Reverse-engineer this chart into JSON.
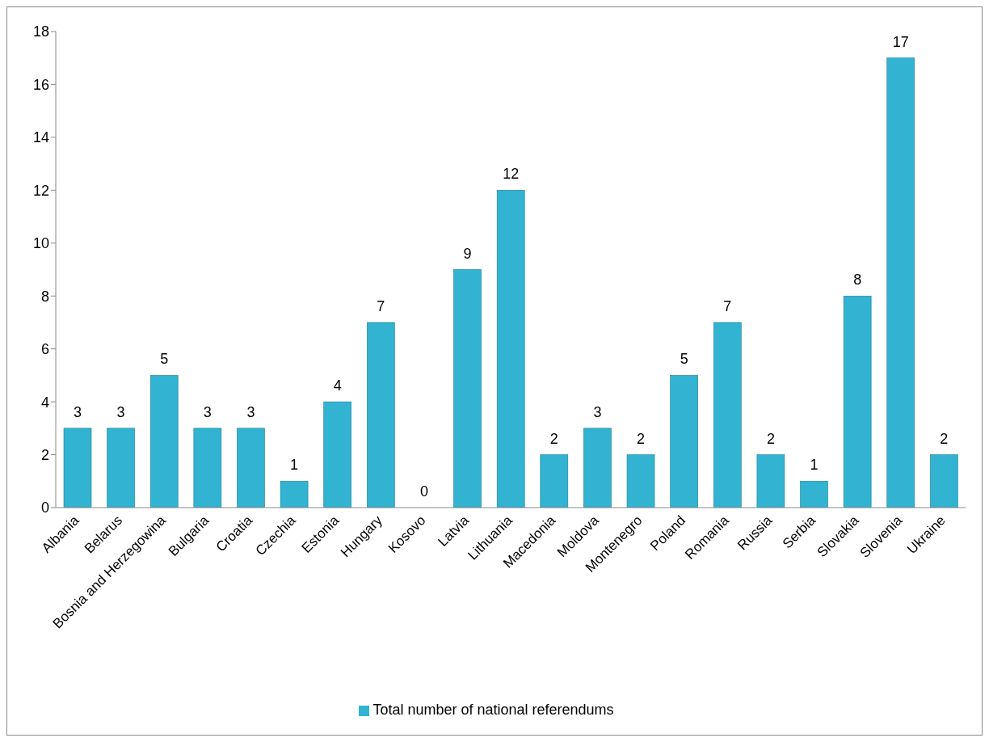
{
  "chart_data": {
    "type": "bar",
    "categories": [
      "Albania",
      "Belarus",
      "Bosnia and Herzegowina",
      "Bulgaria",
      "Croatia",
      "Czechia",
      "Estonia",
      "Hungary",
      "Kosovo",
      "Latvia",
      "Lithuania",
      "Macedonia",
      "Moldova",
      "Montenegro",
      "Poland",
      "Romania",
      "Russia",
      "Serbia",
      "Slovakia",
      "Slovenia",
      "Ukraine"
    ],
    "series": [
      {
        "name": "Total number of national referendums",
        "color": "#31b3d1",
        "values": [
          3,
          3,
          5,
          3,
          3,
          1,
          4,
          7,
          0,
          9,
          12,
          2,
          3,
          2,
          5,
          7,
          2,
          1,
          8,
          17,
          2
        ]
      }
    ],
    "ylim": [
      0,
      18
    ],
    "yticks": [
      0,
      2,
      4,
      6,
      8,
      10,
      12,
      14,
      16,
      18
    ],
    "data_labels": true,
    "legend": "bottom",
    "grid": false
  }
}
